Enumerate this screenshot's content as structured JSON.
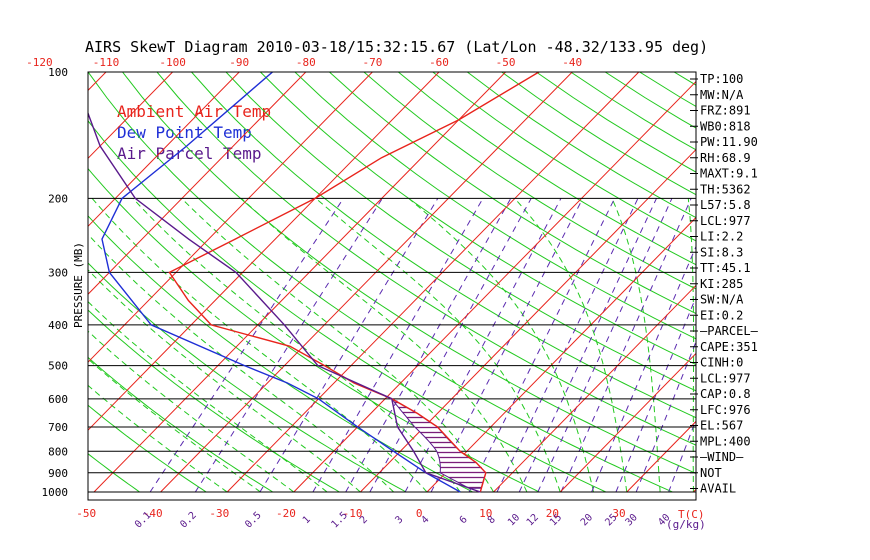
{
  "chart_data": {
    "type": "skewt",
    "title": "AIRS SkewT Diagram 2010-03-18/15:32:15.67 (Lat/Lon -48.32/133.95 deg)",
    "ylabel": "PRESSURE (MB)",
    "pressure_labels": [
      "100",
      "200",
      "300",
      "400",
      "500",
      "600",
      "700",
      "800",
      "900",
      "1000"
    ],
    "pressure_levels": [
      100,
      200,
      300,
      400,
      500,
      600,
      700,
      800,
      900,
      1000
    ],
    "top_temp_labels": [
      "-120",
      "-110",
      "-100",
      "-90",
      "-80",
      "-70",
      "-60",
      "-50",
      "-40"
    ],
    "bottom_temp_labels": [
      "-50",
      "-40",
      "-30",
      "-20",
      "-10",
      "0",
      "10",
      "20",
      "30"
    ],
    "bottom_unit_label": "T(C)",
    "mixing_ratio_labels": [
      "0.1",
      "0.2",
      "0.5",
      "1",
      "1.5",
      "2",
      "3",
      "4",
      "6",
      "8",
      "10",
      "12",
      "15",
      "20",
      "25",
      "30",
      "40"
    ],
    "mixing_ratio_unit": "(g/kg)",
    "legend": [
      {
        "name": "Ambient Air Temp",
        "color": "#e8241c"
      },
      {
        "name": "Dew Point Temp",
        "color": "#1f2fd6"
      },
      {
        "name": "Air Parcel Temp",
        "color": "#5a1a8c"
      }
    ],
    "indices": [
      "TP:100",
      "MW:N/A",
      "FRZ:891",
      "WB0:818",
      "PW:11.90",
      "RH:68.9",
      "MAXT:9.1",
      "TH:5362",
      "L57:5.8",
      "LCL:977",
      "LI:2.2",
      "SI:8.3",
      "TT:45.1",
      "KI:285",
      "SW:N/A",
      "EI:0.2",
      "–PARCEL–",
      "CAPE:351",
      "CINH:0",
      "LCL:977",
      "CAP:0.8",
      "LFC:976",
      "EL:567",
      "MPL:400",
      "–WIND–",
      "NOT",
      "AVAIL"
    ],
    "series": [
      {
        "name": "Ambient Air Temp",
        "points": [
          [
            100,
            -45
          ],
          [
            130,
            -50
          ],
          [
            160,
            -56
          ],
          [
            200,
            -60
          ],
          [
            250,
            -66
          ],
          [
            300,
            -71
          ],
          [
            350,
            -64
          ],
          [
            400,
            -57
          ],
          [
            450,
            -42
          ],
          [
            500,
            -34
          ],
          [
            550,
            -27
          ],
          [
            600,
            -19
          ],
          [
            650,
            -13
          ],
          [
            700,
            -8
          ],
          [
            800,
            -1
          ],
          [
            850,
            3
          ],
          [
            900,
            6
          ],
          [
            1000,
            8
          ]
        ]
      },
      {
        "name": "Dew Point Temp",
        "points": [
          [
            100,
            -85
          ],
          [
            150,
            -87
          ],
          [
            200,
            -89
          ],
          [
            250,
            -86
          ],
          [
            300,
            -80
          ],
          [
            400,
            -66
          ],
          [
            500,
            -46
          ],
          [
            550,
            -37
          ],
          [
            600,
            -30
          ],
          [
            700,
            -20
          ],
          [
            800,
            -11
          ],
          [
            900,
            -3
          ],
          [
            1000,
            5
          ]
        ]
      },
      {
        "name": "Air Parcel Temp",
        "points": [
          [
            100,
            -115
          ],
          [
            150,
            -100
          ],
          [
            200,
            -87
          ],
          [
            250,
            -73
          ],
          [
            300,
            -61
          ],
          [
            400,
            -46
          ],
          [
            500,
            -35
          ],
          [
            600,
            -19
          ],
          [
            700,
            -14
          ],
          [
            800,
            -8
          ],
          [
            900,
            -3
          ],
          [
            1000,
            8
          ]
        ]
      }
    ]
  }
}
